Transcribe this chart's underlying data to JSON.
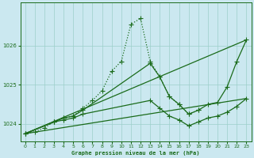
{
  "xlabel": "Graphe pression niveau de la mer (hPa)",
  "bg_color": "#cbe8f0",
  "grid_color": "#9dcfca",
  "line_color": "#1a6b1a",
  "xlim": [
    -0.5,
    23.5
  ],
  "ylim": [
    1023.55,
    1027.1
  ],
  "yticks": [
    1024,
    1025,
    1026
  ],
  "xticks": [
    0,
    1,
    2,
    3,
    4,
    5,
    6,
    7,
    8,
    9,
    10,
    11,
    12,
    13,
    14,
    15,
    16,
    17,
    18,
    19,
    20,
    21,
    22,
    23
  ],
  "series": [
    {
      "x": [
        0,
        1,
        2,
        3,
        4,
        5,
        6,
        7,
        8,
        9,
        10,
        11,
        12,
        13,
        14,
        15,
        16,
        17,
        18
      ],
      "y": [
        1023.75,
        1023.8,
        1023.9,
        1024.05,
        1024.15,
        1024.2,
        1024.4,
        1024.6,
        1024.85,
        1025.35,
        1025.6,
        1026.55,
        1026.7,
        1025.6,
        1025.2,
        1024.7,
        1024.5,
        1024.25,
        1024.35
      ],
      "marker": "+",
      "markersize": 4,
      "lw": 0.9,
      "ls": "dotted"
    },
    {
      "x": [
        0,
        23
      ],
      "y": [
        1023.75,
        1026.15
      ],
      "marker": "None",
      "markersize": 0,
      "lw": 0.9,
      "ls": "solid"
    },
    {
      "x": [
        0,
        3,
        4,
        5,
        6,
        13,
        14,
        15,
        16,
        17,
        18,
        19,
        20,
        21,
        22,
        23
      ],
      "y": [
        1023.75,
        1024.05,
        1024.15,
        1024.2,
        1024.35,
        1025.55,
        1025.2,
        1024.7,
        1024.5,
        1024.25,
        1024.35,
        1024.5,
        1024.55,
        1024.95,
        1025.6,
        1026.15
      ],
      "marker": "+",
      "markersize": 4,
      "lw": 0.9,
      "ls": "solid"
    },
    {
      "x": [
        0,
        23
      ],
      "y": [
        1023.75,
        1024.65
      ],
      "marker": "None",
      "markersize": 0,
      "lw": 0.9,
      "ls": "solid"
    },
    {
      "x": [
        0,
        3,
        4,
        5,
        6,
        13,
        14,
        15,
        16,
        17,
        18,
        19,
        20,
        21,
        22,
        23
      ],
      "y": [
        1023.75,
        1024.05,
        1024.1,
        1024.15,
        1024.25,
        1024.6,
        1024.4,
        1024.2,
        1024.1,
        1023.95,
        1024.05,
        1024.15,
        1024.2,
        1024.3,
        1024.45,
        1024.65
      ],
      "marker": "+",
      "markersize": 4,
      "lw": 0.9,
      "ls": "solid"
    }
  ]
}
